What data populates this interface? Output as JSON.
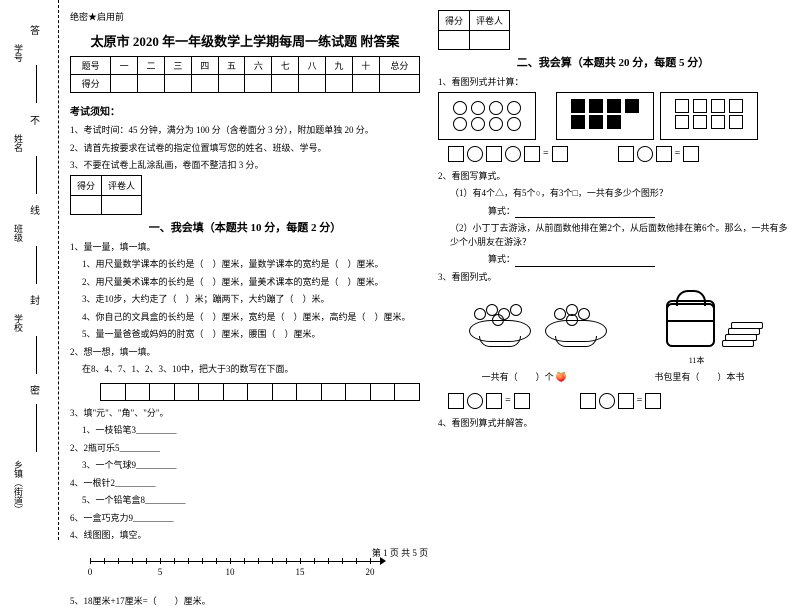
{
  "binding": {
    "labels": [
      "题",
      "学号",
      "姓名",
      "班级",
      "学校",
      "乡镇（街道）"
    ],
    "marks": [
      "答",
      "不",
      "内",
      "线",
      "封",
      "密"
    ]
  },
  "secret": "绝密★启用前",
  "title": "太原市 2020 年一年级数学上学期每周一练试题 附答案",
  "score_table": {
    "headers": [
      "题号",
      "一",
      "二",
      "三",
      "四",
      "五",
      "六",
      "七",
      "八",
      "九",
      "十",
      "总分"
    ],
    "row_label": "得分"
  },
  "notice_title": "考试须知：",
  "notices": [
    "1、考试时间：45 分钟，满分为 100 分（含卷面分 3 分），附加题单独 20 分。",
    "2、请首先按要求在试卷的指定位置填写您的姓名、班级、学号。",
    "3、不要在试卷上乱涂乱画，卷面不整洁扣 3 分。"
  ],
  "mini_table": [
    "得分",
    "评卷人"
  ],
  "section1_title": "一、我会填（本题共 10 分，每题 2 分）",
  "q1": [
    "1、量一量，填一填。",
    "1、用尺量数学课本的长约是（　）厘米，量数学课本的宽约是（　）厘米。",
    "2、用尺量美术课本的长约是（　）厘米，量美术课本的宽约是（　）厘米。",
    "3、走10步，大约走了（　）米；蹦两下，大约蹦了（　）米。",
    "4、你自己的文具盒的长约是（　）厘米，宽约是（　）厘米，高约是（　）厘米。",
    "5、量一量爸爸或妈妈的肘宽（　）厘米，腰围（　）厘米。"
  ],
  "q2_head": "2、想一想，填一填。",
  "q2_body": "在8、4、7、1、2、3、10中，把大于3的数写在下面。",
  "q3_head": "3、填\"元\"、\"角\"、\"分\"。",
  "q3_items": [
    "1、一枝铅笔3_________",
    "2、2瓶可乐5_________",
    "3、一个气球9_________",
    "4、一根针2_________",
    "5、一个铅笔盒8_________",
    "6、一盒巧克力9_________"
  ],
  "q4": "4、线图图，填空。",
  "numline": {
    "start": 0,
    "end": 20,
    "ticks": [
      0,
      5,
      10,
      15,
      20
    ]
  },
  "q5": "5、18厘米+17厘米=（　　）厘米。",
  "section2_title": "二、我会算（本题共 20 分，每题 5 分）",
  "s2q1": "1、看图列式并计算：",
  "s2q2": "2、看图写算式。",
  "s2q2a": "（1）有4个△，有5个○，有3个□，一共有多少个图形？",
  "s2q2b": "（2）小丁丁去游泳，从前面数他排在第2个，从后面数他排在第6个。那么，一共有多少个小朋友在游泳？",
  "calc_label": "算式：",
  "s2q3": "3、看图列式。",
  "s2q3_left": "一共有（　　）个",
  "s2q3_right_top": "11本",
  "s2q3_right": "书包里有（　　）本书",
  "s2q4": "4、看图列算式并解答。",
  "footer": "第 1 页 共 5 页"
}
